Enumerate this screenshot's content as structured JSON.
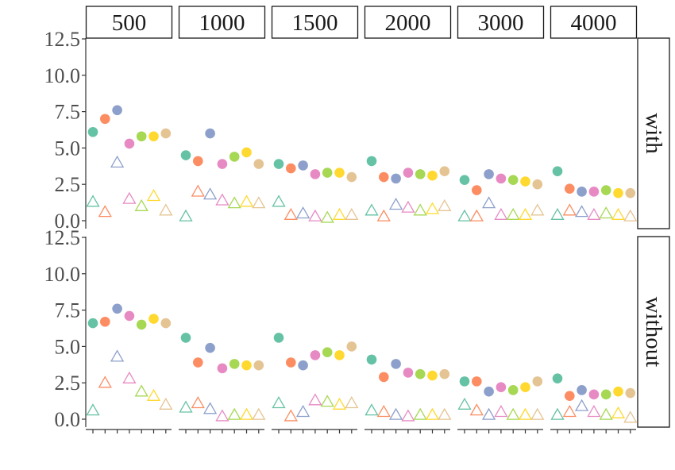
{
  "chart_data": {
    "type": "scatter",
    "facet_columns": [
      "500",
      "1000",
      "1500",
      "2000",
      "3000",
      "4000"
    ],
    "facet_rows": [
      "with",
      "without"
    ],
    "ylim": [
      0,
      12.5
    ],
    "y_ticks": [
      "0.0",
      "2.5",
      "5.0",
      "7.5",
      "10.0",
      "12.5"
    ],
    "points_per_panel": 7,
    "x_tick_labels": "none",
    "grid": false,
    "legend": "none",
    "marker_filled": "circle",
    "marker_open": "triangle",
    "palette": [
      "#66c2a5",
      "#fc8d62",
      "#8da0cb",
      "#e78ac3",
      "#a6d854",
      "#ffd92f",
      "#e5c494"
    ],
    "series": [
      {
        "marker": "circle",
        "values": {
          "with": [
            [
              6.1,
              7.0,
              7.6,
              5.3,
              5.8,
              5.8,
              6.0
            ],
            [
              4.5,
              4.1,
              6.0,
              3.9,
              4.4,
              4.7,
              3.9
            ],
            [
              3.9,
              3.6,
              3.8,
              3.2,
              3.3,
              3.3,
              3.0
            ],
            [
              4.1,
              3.0,
              2.9,
              3.3,
              3.2,
              3.1,
              3.4
            ],
            [
              2.8,
              2.1,
              3.2,
              2.9,
              2.8,
              2.7,
              2.5
            ],
            [
              3.4,
              2.2,
              2.0,
              2.0,
              2.1,
              1.9,
              1.9
            ]
          ],
          "without": [
            [
              6.6,
              6.7,
              7.6,
              7.1,
              6.5,
              6.9,
              6.6
            ],
            [
              5.6,
              3.9,
              4.9,
              3.5,
              3.8,
              3.7,
              3.7
            ],
            [
              5.6,
              3.9,
              3.7,
              4.4,
              4.6,
              4.4,
              5.0
            ],
            [
              4.1,
              2.9,
              3.8,
              3.2,
              3.1,
              3.0,
              3.1
            ],
            [
              2.6,
              2.6,
              1.9,
              2.2,
              2.0,
              2.2,
              2.6
            ],
            [
              2.8,
              1.6,
              2.0,
              1.7,
              1.7,
              1.9,
              1.8
            ]
          ]
        }
      },
      {
        "marker": "triangle",
        "values": {
          "with": [
            [
              1.3,
              0.6,
              4.0,
              1.5,
              1.0,
              1.7,
              0.7
            ],
            [
              0.3,
              2.0,
              1.8,
              1.4,
              1.2,
              1.3,
              1.2
            ],
            [
              1.3,
              0.4,
              0.5,
              0.3,
              0.2,
              0.4,
              0.4
            ],
            [
              0.7,
              0.3,
              1.1,
              0.9,
              0.7,
              0.8,
              1.0
            ],
            [
              0.3,
              0.3,
              1.2,
              0.4,
              0.4,
              0.4,
              0.7
            ],
            [
              0.4,
              0.7,
              0.6,
              0.4,
              0.5,
              0.4,
              0.3
            ]
          ],
          "without": [
            [
              0.6,
              2.5,
              4.3,
              2.8,
              1.9,
              1.6,
              1.0
            ],
            [
              0.8,
              1.1,
              0.7,
              0.2,
              0.3,
              0.3,
              0.3
            ],
            [
              1.1,
              0.2,
              0.5,
              1.3,
              1.2,
              1.0,
              1.1
            ],
            [
              0.6,
              0.5,
              0.3,
              0.2,
              0.3,
              0.3,
              0.3
            ],
            [
              1.0,
              0.6,
              0.3,
              0.5,
              0.3,
              0.3,
              0.3
            ],
            [
              0.3,
              0.5,
              0.9,
              0.5,
              0.3,
              0.4,
              0.1
            ]
          ]
        }
      }
    ]
  }
}
